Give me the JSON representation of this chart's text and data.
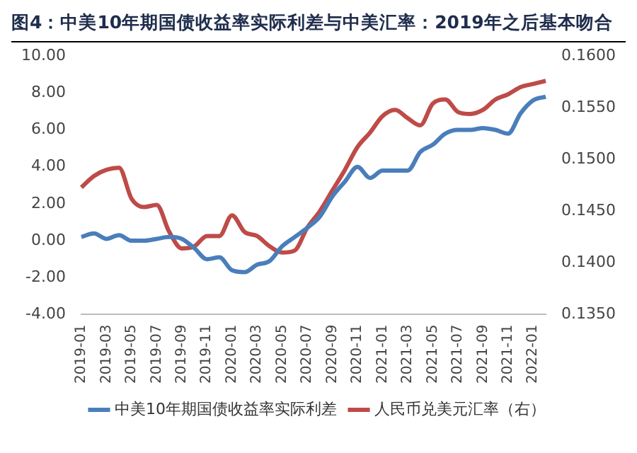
{
  "chart_data": {
    "type": "line",
    "title": "图4：中美10年期国债收益率实际利差与中美汇率：2019年之后基本吻合",
    "categories": [
      "2019-01",
      null,
      "2019-03",
      null,
      "2019-05",
      null,
      "2019-07",
      null,
      "2019-09",
      null,
      "2019-11",
      null,
      "2020-01",
      null,
      "2020-03",
      null,
      "2020-05",
      null,
      "2020-07",
      null,
      "2020-09",
      null,
      "2020-11",
      null,
      "2021-01",
      null,
      "2021-03",
      null,
      "2021-05",
      null,
      "2021-07",
      null,
      "2021-09",
      null,
      "2021-11",
      null,
      "2022-01",
      null
    ],
    "series": [
      {
        "name": "中美10年期国债收益率实际利差",
        "color": "#4a7ebb",
        "values": [
          0.2,
          0.4,
          0.1,
          0.3,
          0.0,
          0.0,
          0.1,
          0.2,
          0.1,
          -0.4,
          -1.0,
          -0.9,
          -1.6,
          -1.7,
          -1.3,
          -1.1,
          -0.3,
          0.2,
          0.7,
          1.3,
          2.4,
          3.2,
          4.0,
          3.4,
          3.8,
          3.8,
          3.8,
          4.8,
          5.2,
          5.8,
          6.0,
          6.0,
          6.1,
          6.0,
          5.8,
          6.9,
          7.6,
          7.8
        ]
      },
      {
        "name": "人民币兑美元汇率（右）",
        "color": "#be4b48",
        "axis": "y2",
        "values": [
          0.1473,
          0.1484,
          0.149,
          0.1492,
          0.1462,
          0.1454,
          0.1456,
          0.143,
          0.1414,
          0.1416,
          0.1426,
          0.1426,
          0.1446,
          0.143,
          0.1426,
          0.1416,
          0.141,
          0.1412,
          0.1434,
          0.145,
          0.147,
          0.149,
          0.1512,
          0.1526,
          0.1542,
          0.1548,
          0.154,
          0.1533,
          0.1554,
          0.1558,
          0.1546,
          0.1544,
          0.1548,
          0.1558,
          0.1563,
          0.157,
          0.1573,
          0.1576
        ]
      }
    ],
    "ylim": [
      -4,
      10
    ],
    "yticks": [
      {
        "value": -4,
        "label": "-4.00"
      },
      {
        "value": -2,
        "label": "-2.00"
      },
      {
        "value": 0,
        "label": "0.00"
      },
      {
        "value": 2,
        "label": "2.00"
      },
      {
        "value": 4,
        "label": "4.00"
      },
      {
        "value": 6,
        "label": "6.00"
      },
      {
        "value": 8,
        "label": "8.00"
      },
      {
        "value": 10,
        "label": "10.00"
      }
    ],
    "y2lim": [
      0.135,
      0.16
    ],
    "y2ticks": [
      {
        "value": 0.135,
        "label": "0.1350"
      },
      {
        "value": 0.14,
        "label": "0.1400"
      },
      {
        "value": 0.145,
        "label": "0.1450"
      },
      {
        "value": 0.15,
        "label": "0.1500"
      },
      {
        "value": 0.155,
        "label": "0.1550"
      },
      {
        "value": 0.16,
        "label": "0.1600"
      }
    ],
    "legend": "bottom",
    "marker": "none"
  }
}
